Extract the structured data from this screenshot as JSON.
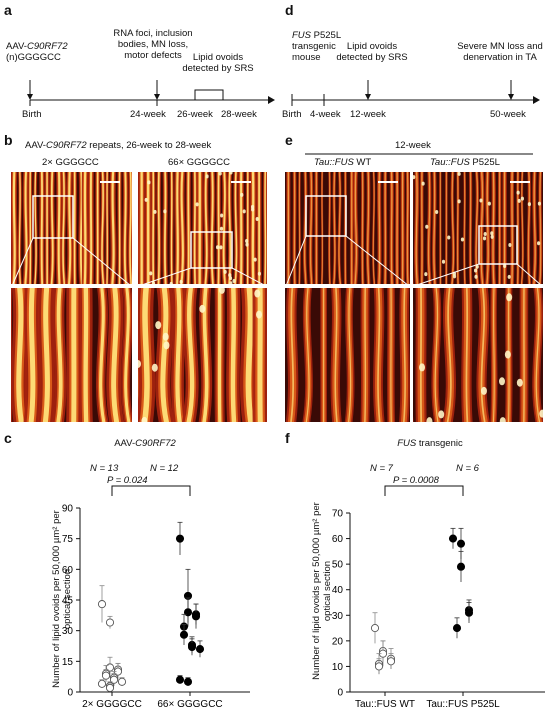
{
  "panels": {
    "a": {
      "label": "a",
      "construct_line1": "AAV-",
      "construct_gene": "C90RF72",
      "construct_line2": "(n)GGGGCC",
      "events": [
        {
          "text_lines": [
            "RNA foci, inclusion",
            "bodies, MN loss,",
            "motor defects"
          ]
        },
        {
          "text_lines": [
            "Lipid ovoids",
            "detected by SRS"
          ]
        }
      ],
      "ticks": [
        "Birth",
        "24-week",
        "26-week",
        "28-week"
      ]
    },
    "b": {
      "label": "b",
      "title_prefix": "AAV-",
      "title_gene": "C90RF72",
      "title_suffix": " repeats, 26-week to 28-week",
      "col_labels": [
        "2× GGGGCC",
        "66× GGGGCC"
      ]
    },
    "c": {
      "label": "c",
      "title_prefix": "AAV-",
      "title_gene": "C90RF72",
      "n_labels": [
        "N = 13",
        "N = 12"
      ],
      "p_label": "P = 0.024"
    },
    "d": {
      "label": "d",
      "mouse_gene": "FUS",
      "mouse_line1": " P525L",
      "mouse_line2": "transgenic",
      "mouse_line3": "mouse",
      "events": [
        {
          "text_lines": [
            "Lipid ovoids",
            "detected by SRS"
          ]
        },
        {
          "text_lines": [
            "Severe MN loss and",
            "denervation in TA"
          ]
        }
      ],
      "ticks": [
        "Birth",
        "4-week",
        "12-week",
        "50-week"
      ]
    },
    "e": {
      "label": "e",
      "timepoint": "12-week",
      "col_labels": [
        {
          "prefix": "Tau::FUS",
          "suffix": " WT"
        },
        {
          "prefix": "Tau::FUS",
          "suffix": " P525L"
        }
      ]
    },
    "f": {
      "label": "f",
      "title_gene": "FUS",
      "title_suffix": " transgenic",
      "n_labels": [
        "N = 7",
        "N = 6"
      ],
      "p_label": "P = 0.0008"
    }
  },
  "chart_data": [
    {
      "panel": "c",
      "type": "scatter",
      "title": "AAV-C90RF72",
      "ylabel": "Number of lipid ovoids per 50,000 µm² per optical section",
      "categories": [
        "2× GGGGCC",
        "66× GGGGCC"
      ],
      "ylim": [
        0,
        90
      ],
      "yticks": [
        0,
        15,
        30,
        45,
        60,
        75,
        90
      ],
      "series": [
        {
          "name": "2× GGGGCC",
          "marker": "open",
          "points": [
            {
              "y": 43,
              "err": 9
            },
            {
              "y": 34,
              "err": 3
            },
            {
              "y": 12,
              "err": 5
            },
            {
              "y": 11,
              "err": 3
            },
            {
              "y": 10,
              "err": 4
            },
            {
              "y": 9,
              "err": 4
            },
            {
              "y": 8,
              "err": 3
            },
            {
              "y": 7,
              "err": 3
            },
            {
              "y": 6,
              "err": 3
            },
            {
              "y": 5,
              "err": 2
            },
            {
              "y": 4,
              "err": 2
            },
            {
              "y": 3,
              "err": 2
            },
            {
              "y": 2,
              "err": 2
            }
          ]
        },
        {
          "name": "66× GGGGCC",
          "marker": "filled",
          "points": [
            {
              "y": 75,
              "err": 8
            },
            {
              "y": 47,
              "err": 13
            },
            {
              "y": 39,
              "err": 7
            },
            {
              "y": 38,
              "err": 5
            },
            {
              "y": 37,
              "err": 6
            },
            {
              "y": 32,
              "err": 6
            },
            {
              "y": 28,
              "err": 5
            },
            {
              "y": 23,
              "err": 4
            },
            {
              "y": 22,
              "err": 4
            },
            {
              "y": 21,
              "err": 4
            },
            {
              "y": 6,
              "err": 2
            },
            {
              "y": 5,
              "err": 2
            }
          ]
        }
      ]
    },
    {
      "panel": "f",
      "type": "scatter",
      "title": "FUS transgenic",
      "ylabel": "Number of lipid ovoids per 50,000 µm² per optical section",
      "categories": [
        "Tau::FUS WT",
        "Tau::FUS P525L"
      ],
      "ylim": [
        0,
        70
      ],
      "yticks": [
        0,
        10,
        20,
        30,
        40,
        50,
        60,
        70
      ],
      "series": [
        {
          "name": "Tau::FUS WT",
          "marker": "open",
          "points": [
            {
              "y": 25,
              "err": 6
            },
            {
              "y": 16,
              "err": 4
            },
            {
              "y": 15,
              "err": 5
            },
            {
              "y": 13,
              "err": 4
            },
            {
              "y": 12,
              "err": 3
            },
            {
              "y": 11,
              "err": 4
            },
            {
              "y": 10,
              "err": 3
            }
          ]
        },
        {
          "name": "Tau::FUS P525L",
          "marker": "filled",
          "points": [
            {
              "y": 60,
              "err": 4
            },
            {
              "y": 58,
              "err": 6
            },
            {
              "y": 49,
              "err": 6
            },
            {
              "y": 32,
              "err": 4
            },
            {
              "y": 31,
              "err": 4
            },
            {
              "y": 25,
              "err": 4
            }
          ]
        }
      ]
    }
  ],
  "colors": {
    "micro_dark": "#3a0a06",
    "micro_red": "#a8230f",
    "micro_orange": "#e4631a",
    "micro_yellow": "#ffe27a",
    "axis": "#111111"
  }
}
